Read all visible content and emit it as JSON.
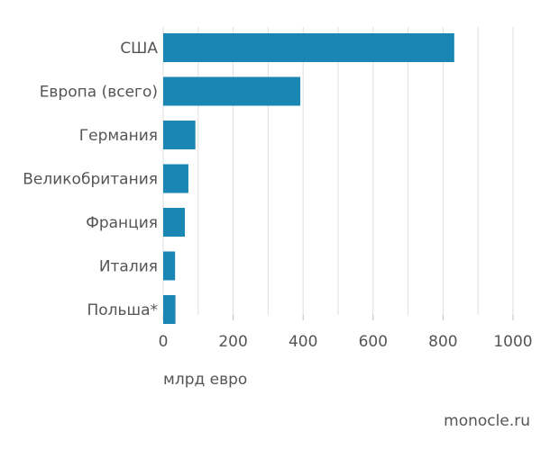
{
  "chart_data": {
    "type": "bar",
    "orientation": "horizontal",
    "categories": [
      "США",
      "Европа (всего)",
      "Германия",
      "Великобритания",
      "Франция",
      "Италия",
      "Польша*"
    ],
    "values": [
      832,
      392,
      92,
      72,
      62,
      34,
      35
    ],
    "xlabel": "млрд евро",
    "xlim": [
      0,
      1000
    ],
    "xticks": [
      0,
      200,
      400,
      600,
      800,
      1000
    ],
    "grid": true,
    "bar_color": "#1a86b3"
  },
  "source": "monocle.ru"
}
